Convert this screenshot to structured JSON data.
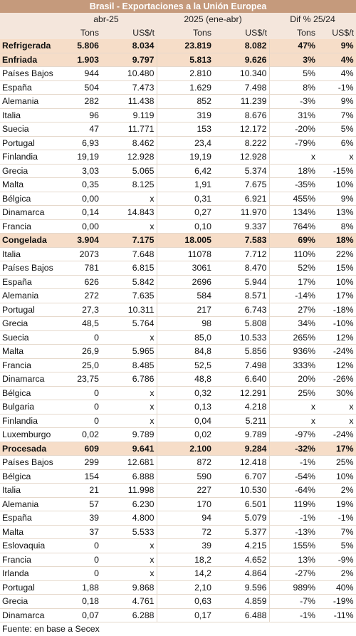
{
  "title": "Brasil - Exportaciones a la Unión Europea",
  "header": {
    "period1": "abr-25",
    "period2": "2025 (ene-abr)",
    "period3": "Dif % 25/24",
    "units": [
      "Tons",
      "US$/t",
      "Tons",
      "US$/t",
      "Tons",
      "US$/t"
    ]
  },
  "rows": [
    {
      "type": "cat",
      "label": "Refrigerada",
      "values": [
        "5.806",
        "8.034",
        "23.819",
        "8.082",
        "47%",
        "9%"
      ]
    },
    {
      "type": "cat",
      "label": "Enfriada",
      "values": [
        "1.903",
        "9.797",
        "5.813",
        "9.626",
        "3%",
        "4%"
      ]
    },
    {
      "type": "row",
      "label": "Países Bajos",
      "values": [
        "944",
        "10.480",
        "2.810",
        "10.340",
        "5%",
        "4%"
      ]
    },
    {
      "type": "row",
      "label": "España",
      "values": [
        "504",
        "7.473",
        "1.629",
        "7.498",
        "8%",
        "-1%"
      ]
    },
    {
      "type": "row",
      "label": "Alemania",
      "values": [
        "282",
        "11.438",
        "852",
        "11.239",
        "-3%",
        "9%"
      ]
    },
    {
      "type": "row",
      "label": "Italia",
      "values": [
        "96",
        "9.119",
        "319",
        "8.676",
        "31%",
        "7%"
      ]
    },
    {
      "type": "row",
      "label": "Suecia",
      "values": [
        "47",
        "11.771",
        "153",
        "12.172",
        "-20%",
        "5%"
      ]
    },
    {
      "type": "row",
      "label": "Portugal",
      "values": [
        "6,93",
        "8.462",
        "23,4",
        "8.222",
        "-79%",
        "6%"
      ]
    },
    {
      "type": "row",
      "label": "Finlandia",
      "values": [
        "19,19",
        "12.928",
        "19,19",
        "12.928",
        "x",
        "x"
      ]
    },
    {
      "type": "row",
      "label": "Grecia",
      "values": [
        "3,03",
        "5.065",
        "6,42",
        "5.374",
        "18%",
        "-15%"
      ]
    },
    {
      "type": "row",
      "label": "Malta",
      "values": [
        "0,35",
        "8.125",
        "1,91",
        "7.675",
        "-35%",
        "10%"
      ]
    },
    {
      "type": "row",
      "label": "Bélgica",
      "values": [
        "0,00",
        "x",
        "0,31",
        "6.921",
        "455%",
        "9%"
      ]
    },
    {
      "type": "row",
      "label": "Dinamarca",
      "values": [
        "0,14",
        "14.843",
        "0,27",
        "11.970",
        "134%",
        "13%"
      ]
    },
    {
      "type": "row",
      "label": "Francia",
      "values": [
        "0,00",
        "x",
        "0,10",
        "9.337",
        "764%",
        "8%"
      ]
    },
    {
      "type": "cat",
      "label": "Congelada",
      "values": [
        "3.904",
        "7.175",
        "18.005",
        "7.583",
        "69%",
        "18%"
      ]
    },
    {
      "type": "row",
      "label": "Italia",
      "values": [
        "2073",
        "7.648",
        "11078",
        "7.712",
        "110%",
        "22%"
      ]
    },
    {
      "type": "row",
      "label": "Países Bajos",
      "values": [
        "781",
        "6.815",
        "3061",
        "8.470",
        "52%",
        "15%"
      ]
    },
    {
      "type": "row",
      "label": "España",
      "values": [
        "626",
        "5.842",
        "2696",
        "5.944",
        "17%",
        "10%"
      ]
    },
    {
      "type": "row",
      "label": "Alemania",
      "values": [
        "272",
        "7.635",
        "584",
        "8.571",
        "-14%",
        "17%"
      ]
    },
    {
      "type": "row",
      "label": "Portugal",
      "values": [
        "27,3",
        "10.311",
        "217",
        "6.743",
        "27%",
        "-18%"
      ]
    },
    {
      "type": "row",
      "label": "Grecia",
      "values": [
        "48,5",
        "5.764",
        "98",
        "5.808",
        "34%",
        "-10%"
      ]
    },
    {
      "type": "row",
      "label": "Suecia",
      "values": [
        "0",
        "x",
        "85,0",
        "10.533",
        "265%",
        "12%"
      ]
    },
    {
      "type": "row",
      "label": "Malta",
      "values": [
        "26,9",
        "5.965",
        "84,8",
        "5.856",
        "936%",
        "-24%"
      ]
    },
    {
      "type": "row",
      "label": "Francia",
      "values": [
        "25,0",
        "8.485",
        "52,5",
        "7.498",
        "333%",
        "12%"
      ]
    },
    {
      "type": "row",
      "label": "Dinamarca",
      "values": [
        "23,75",
        "6.786",
        "48,8",
        "6.640",
        "20%",
        "-26%"
      ]
    },
    {
      "type": "row",
      "label": "Bélgica",
      "values": [
        "0",
        "x",
        "0,32",
        "12.291",
        "25%",
        "30%"
      ]
    },
    {
      "type": "row",
      "label": "Bulgaria",
      "values": [
        "0",
        "x",
        "0,13",
        "4.218",
        "x",
        "x"
      ]
    },
    {
      "type": "row",
      "label": "Finlandia",
      "values": [
        "0",
        "x",
        "0,04",
        "5.211",
        "x",
        "x"
      ]
    },
    {
      "type": "row",
      "label": "Luxemburgo",
      "values": [
        "0,02",
        "9.789",
        "0,02",
        "9.789",
        "-97%",
        "-24%"
      ]
    },
    {
      "type": "cat",
      "label": "Procesada",
      "values": [
        "609",
        "9.641",
        "2.100",
        "9.284",
        "-32%",
        "17%"
      ]
    },
    {
      "type": "row",
      "label": "Países Bajos",
      "values": [
        "299",
        "12.681",
        "872",
        "12.418",
        "-1%",
        "25%"
      ]
    },
    {
      "type": "row",
      "label": "Bélgica",
      "values": [
        "154",
        "6.888",
        "590",
        "6.707",
        "-54%",
        "10%"
      ]
    },
    {
      "type": "row",
      "label": "Italia",
      "values": [
        "21",
        "11.998",
        "227",
        "10.530",
        "-64%",
        "2%"
      ]
    },
    {
      "type": "row",
      "label": "Alemania",
      "values": [
        "57",
        "6.230",
        "170",
        "6.501",
        "119%",
        "19%"
      ]
    },
    {
      "type": "row",
      "label": "España",
      "values": [
        "39",
        "4.800",
        "94",
        "5.079",
        "-1%",
        "-1%"
      ]
    },
    {
      "type": "row",
      "label": "Malta",
      "values": [
        "37",
        "5.533",
        "72",
        "5.377",
        "-13%",
        "7%"
      ]
    },
    {
      "type": "row",
      "label": "Eslovaquia",
      "values": [
        "0",
        "x",
        "39",
        "4.215",
        "155%",
        "5%"
      ]
    },
    {
      "type": "row",
      "label": "Francia",
      "values": [
        "0",
        "x",
        "18,2",
        "4.652",
        "13%",
        "-9%"
      ]
    },
    {
      "type": "row",
      "label": "Irlanda",
      "values": [
        "0",
        "x",
        "14,2",
        "4.864",
        "-27%",
        "2%"
      ]
    },
    {
      "type": "row",
      "label": "Portugal",
      "values": [
        "1,88",
        "9.868",
        "2,10",
        "9.596",
        "989%",
        "40%"
      ]
    },
    {
      "type": "row",
      "label": "Grecia",
      "values": [
        "0,18",
        "4.761",
        "0,63",
        "4.859",
        "-7%",
        "-19%"
      ]
    },
    {
      "type": "row",
      "label": "Dinamarca",
      "values": [
        "0,07",
        "6.288",
        "0,17",
        "6.488",
        "-1%",
        "-11%"
      ]
    }
  ],
  "source": "Fuente: en base a Secex",
  "colors": {
    "title_bg": "#c59a7c",
    "category_bg": "#f6ddc8",
    "header_bg": "#f4e6dc"
  }
}
